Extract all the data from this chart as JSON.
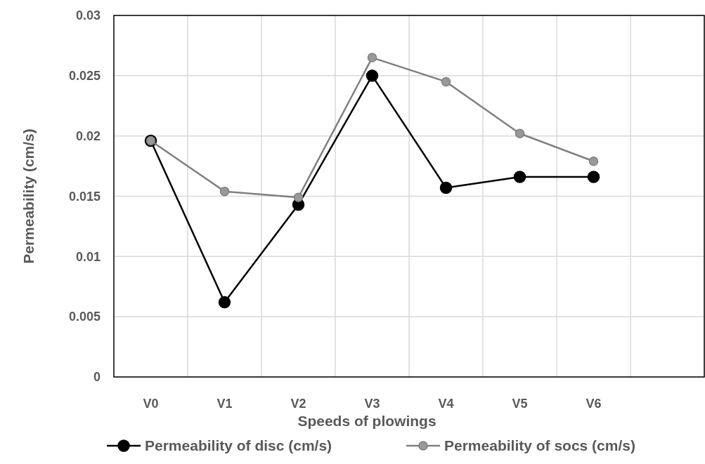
{
  "chart_data": {
    "type": "line",
    "xlabel": "Speeds of plowings",
    "ylabel": "Permeability (cm/s)",
    "categories": [
      "V0",
      "V1",
      "V2",
      "V3",
      "V4",
      "V5",
      "V6",
      null
    ],
    "series": [
      {
        "name": "Permeability of disc (cm/s)",
        "color": "#000000",
        "values": [
          0.0196,
          0.0062,
          0.0143,
          0.025,
          0.0157,
          0.0166,
          0.0166,
          null
        ]
      },
      {
        "name": "Permeability of socs (cm/s)",
        "color": "#999999",
        "values": [
          0.0196,
          0.0154,
          0.0149,
          0.0265,
          0.0245,
          0.0202,
          0.0179,
          null
        ]
      }
    ],
    "ylim": [
      0,
      0.03
    ],
    "yticks": [
      0,
      0.005,
      0.01,
      0.015,
      0.02,
      0.025,
      0.03
    ],
    "grid": true,
    "legend": "bottom",
    "marker": "circle",
    "line_style": "solid"
  }
}
